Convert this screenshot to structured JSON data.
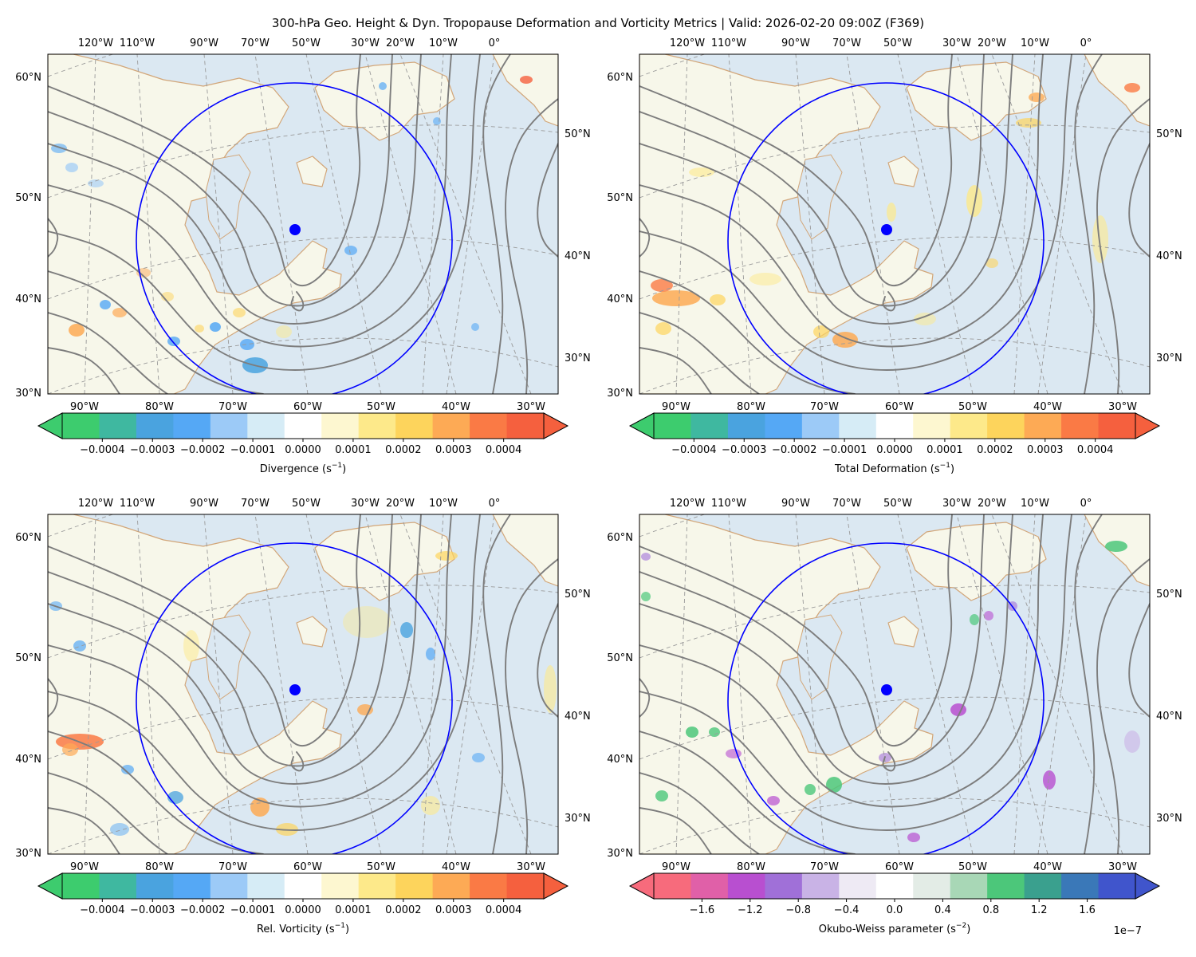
{
  "suptitle": "300-hPa Geo. Height & Dyn. Tropopause Deformation and Vorticity Metrics |  Valid: 2026-02-20 09:00Z (F369)",
  "colors": {
    "ocean": "#dbe8f2",
    "land": "#f7f7ea",
    "coastline": "#d2a679",
    "height_contour": "#7d7d7d",
    "graticule": "#9a9a9a",
    "ring": "#0000ff",
    "marker": "#0000ff"
  },
  "map": {
    "top_lon_labels": [
      "120°W",
      "110°W",
      "90°W",
      "70°W",
      "50°W",
      "30°W",
      "20°W",
      "10°W",
      "0°"
    ],
    "bottom_lon_labels": [
      "90°W",
      "80°W",
      "70°W",
      "60°W",
      "50°W",
      "40°W",
      "30°W"
    ],
    "left_lat_labels": [
      "60°N",
      "50°N",
      "40°N",
      "30°N"
    ],
    "right_lat_labels": [
      "50°N",
      "40°N",
      "30°N"
    ]
  },
  "panels": [
    {
      "id": "divergence",
      "colorbar": {
        "label": "Divergence (s",
        "label_exp": "−1",
        "colormap": [
          "#3dcc6e",
          "#3fb8a0",
          "#4aa3df",
          "#55a8f5",
          "#9ccaf7",
          "#d6ecf6",
          "#ffffff",
          "#fdf7d0",
          "#fde98a",
          "#fdd45c",
          "#fdaa55",
          "#fa7a45",
          "#f5603e"
        ],
        "ticks": [
          "−0.0004",
          "−0.0003",
          "−0.0002",
          "−0.0001",
          "0.0000",
          "0.0001",
          "0.0002",
          "0.0003",
          "0.0004"
        ],
        "tick_values": [
          -0.0004,
          -0.0003,
          -0.0002,
          -0.0001,
          0,
          0.0001,
          0.0002,
          0.0003,
          0.0004
        ],
        "range": [
          -0.00048,
          0.00048
        ],
        "offset_text": ""
      }
    },
    {
      "id": "deformation",
      "colorbar": {
        "label": "Total Deformation (s",
        "label_exp": "−1",
        "colormap": [
          "#3dcc6e",
          "#3fb8a0",
          "#4aa3df",
          "#55a8f5",
          "#9ccaf7",
          "#d6ecf6",
          "#ffffff",
          "#fdf7d0",
          "#fde98a",
          "#fdd45c",
          "#fdaa55",
          "#fa7a45",
          "#f5603e"
        ],
        "ticks": [
          "−0.0004",
          "−0.0003",
          "−0.0002",
          "−0.0001",
          "0.0000",
          "0.0001",
          "0.0002",
          "0.0003",
          "0.0004"
        ],
        "tick_values": [
          -0.0004,
          -0.0003,
          -0.0002,
          -0.0001,
          0,
          0.0001,
          0.0002,
          0.0003,
          0.0004
        ],
        "range": [
          -0.00048,
          0.00048
        ],
        "offset_text": ""
      }
    },
    {
      "id": "vorticity",
      "colorbar": {
        "label": "Rel. Vorticity (s",
        "label_exp": "−1",
        "colormap": [
          "#3dcc6e",
          "#3fb8a0",
          "#4aa3df",
          "#55a8f5",
          "#9ccaf7",
          "#d6ecf6",
          "#ffffff",
          "#fdf7d0",
          "#fde98a",
          "#fdd45c",
          "#fdaa55",
          "#fa7a45",
          "#f5603e"
        ],
        "ticks": [
          "−0.0004",
          "−0.0003",
          "−0.0002",
          "−0.0001",
          "0.0000",
          "0.0001",
          "0.0002",
          "0.0003",
          "0.0004"
        ],
        "tick_values": [
          -0.0004,
          -0.0003,
          -0.0002,
          -0.0001,
          0,
          0.0001,
          0.0002,
          0.0003,
          0.0004
        ],
        "range": [
          -0.00048,
          0.00048
        ],
        "offset_text": ""
      }
    },
    {
      "id": "okubo-weiss",
      "colorbar": {
        "label": "Okubo-Weiss parameter (s",
        "label_exp": "−2",
        "colormap": [
          "#f76b7c",
          "#e060a8",
          "#b84fd0",
          "#a070d8",
          "#c9b3e6",
          "#eeeaf4",
          "#ffffff",
          "#e3ece6",
          "#a8d7b6",
          "#4cc77a",
          "#3aa08e",
          "#3a78b8",
          "#4055cc"
        ],
        "ticks": [
          "−1.6",
          "−1.2",
          "−0.8",
          "−0.4",
          "0.0",
          "0.4",
          "0.8",
          "1.2",
          "1.6"
        ],
        "tick_values": [
          -1.6,
          -1.2,
          -0.8,
          -0.4,
          0,
          0.4,
          0.8,
          1.2,
          1.6
        ],
        "range": [
          -2.0,
          2.0
        ],
        "offset_text": "1e−7"
      }
    }
  ]
}
